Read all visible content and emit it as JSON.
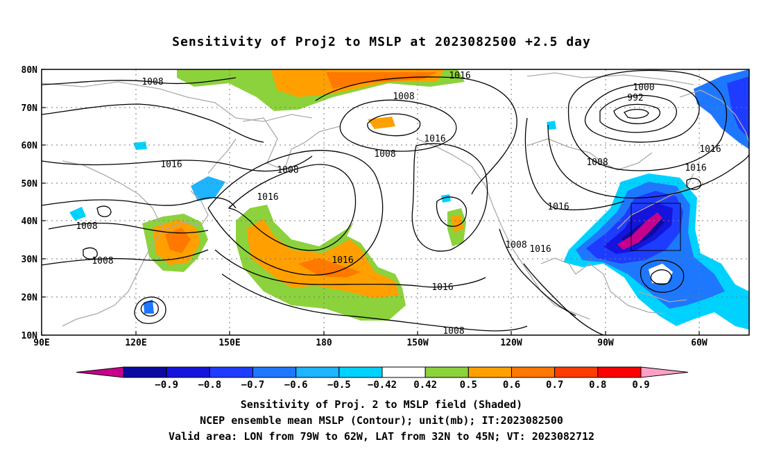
{
  "title": "Sensitivity of Proj2 to MSLP at 2023082500 +2.5 day",
  "map": {
    "lat_labels": [
      "80N",
      "70N",
      "60N",
      "50N",
      "40N",
      "30N",
      "20N",
      "10N"
    ],
    "lon_labels": [
      "90E",
      "120E",
      "150E",
      "180",
      "150W",
      "120W",
      "90W",
      "60W"
    ],
    "contour_labels": [
      "1008",
      "1016",
      "1008",
      "1016",
      "1008",
      "1000",
      "992",
      "1016",
      "1008",
      "1016",
      "1008",
      "1016",
      "1016",
      "1016",
      "1008",
      "1008",
      "1016",
      "1008",
      "1008",
      "1016"
    ],
    "grid": "dotted",
    "coastline_color": "#aaaaaa",
    "valid_box": {
      "lon": [
        "79W",
        "62W"
      ],
      "lat": [
        "32N",
        "45N"
      ]
    }
  },
  "colorbar": {
    "labels": [
      "-0.9",
      "-0.8",
      "-0.7",
      "-0.6",
      "-0.5",
      "-0.42",
      "0.42",
      "0.5",
      "0.6",
      "0.7",
      "0.8",
      "0.9"
    ],
    "colors": [
      "#c8008c",
      "#0a0aa0",
      "#1414dc",
      "#1e3cff",
      "#1e78ff",
      "#1eb4ff",
      "#00d2ff",
      "#ffffff",
      "#8cd23c",
      "#ffa000",
      "#ff7800",
      "#ff3c00",
      "#ff0000",
      "#ffa0c8"
    ]
  },
  "captions": [
    "Sensitivity of Proj. 2 to MSLP field (Shaded)",
    "NCEP ensemble mean MSLP (Contour); unit(mb); IT:2023082500",
    "Valid area: LON from 79W to 62W, LAT from 32N to 45N; VT: 2023082712"
  ]
}
